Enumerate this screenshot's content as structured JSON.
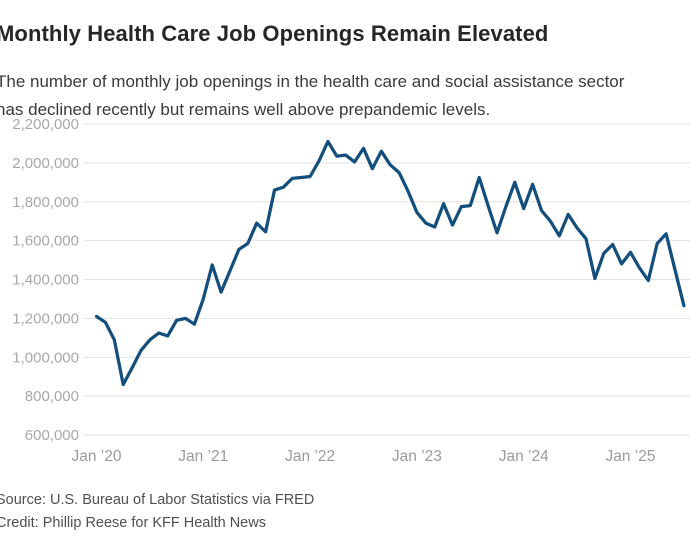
{
  "header": {
    "title": "Monthly Health Care Job Openings Remain Elevated",
    "subtitle": "The number of monthly job openings in the health care and social assistance sector has declined recently but remains well above prepandemic levels."
  },
  "footer": {
    "source": "Source: U.S. Bureau of Labor Statistics via FRED",
    "credit": "Credit: Phillip Reese for KFF Health News"
  },
  "colors": {
    "line": "#134e7c",
    "grid": "#e2e2e2",
    "y_tick_label": "#a8a8a8",
    "x_tick_label": "#9b9b9b",
    "title": "#262626",
    "subtitle": "#3a3a3a",
    "notes": "#4f4f4f"
  },
  "chart_data": {
    "type": "line",
    "title": "Monthly Health Care Job Openings Remain Elevated",
    "subtitle": "The number of monthly job openings in the health care and social assistance sector has declined recently but remains well above prepandemic levels.",
    "xlabel": "",
    "ylabel": "",
    "grid": "horizontal",
    "legend": "none",
    "ylim": [
      600000,
      2200000
    ],
    "y_ticks": [
      {
        "value": 2200000,
        "label": "2,200,000"
      },
      {
        "value": 2000000,
        "label": "2,000,000"
      },
      {
        "value": 1800000,
        "label": "1,800,000"
      },
      {
        "value": 1600000,
        "label": "1,600,000"
      },
      {
        "value": 1400000,
        "label": "1,400,000"
      },
      {
        "value": 1200000,
        "label": "1,200,000"
      },
      {
        "value": 1000000,
        "label": "1,000,000"
      },
      {
        "value": 800000,
        "label": "800,000"
      },
      {
        "value": 600000,
        "label": "600,000"
      }
    ],
    "x_ticks": [
      {
        "index": 0,
        "label": "Jan ’20"
      },
      {
        "index": 12,
        "label": "Jan ’21"
      },
      {
        "index": 24,
        "label": "Jan ’22"
      },
      {
        "index": 36,
        "label": "Jan ’23"
      },
      {
        "index": 48,
        "label": "Jan ’24"
      },
      {
        "index": 60,
        "label": "Jan ’25"
      }
    ],
    "x": [
      "Jan 2020",
      "Feb 2020",
      "Mar 2020",
      "Apr 2020",
      "May 2020",
      "Jun 2020",
      "Jul 2020",
      "Aug 2020",
      "Sep 2020",
      "Oct 2020",
      "Nov 2020",
      "Dec 2020",
      "Jan 2021",
      "Feb 2021",
      "Mar 2021",
      "Apr 2021",
      "May 2021",
      "Jun 2021",
      "Jul 2021",
      "Aug 2021",
      "Sep 2021",
      "Oct 2021",
      "Nov 2021",
      "Dec 2021",
      "Jan 2022",
      "Feb 2022",
      "Mar 2022",
      "Apr 2022",
      "May 2022",
      "Jun 2022",
      "Jul 2022",
      "Aug 2022",
      "Sep 2022",
      "Oct 2022",
      "Nov 2022",
      "Dec 2022",
      "Jan 2023",
      "Feb 2023",
      "Mar 2023",
      "Apr 2023",
      "May 2023",
      "Jun 2023",
      "Jul 2023",
      "Aug 2023",
      "Sep 2023",
      "Oct 2023",
      "Nov 2023",
      "Dec 2023",
      "Jan 2024",
      "Feb 2024",
      "Mar 2024",
      "Apr 2024",
      "May 2024",
      "Jun 2024",
      "Jul 2024",
      "Aug 2024",
      "Sep 2024",
      "Oct 2024",
      "Nov 2024",
      "Dec 2024",
      "Jan 2025",
      "Feb 2025",
      "Mar 2025",
      "Apr 2025",
      "May 2025",
      "Jun 2025",
      "Jul 2025"
    ],
    "series": [
      {
        "name": "Health care and social assistance job openings",
        "color": "#134e7c",
        "values": [
          1210000,
          1180000,
          1090000,
          860000,
          945000,
          1035000,
          1090000,
          1125000,
          1110000,
          1190000,
          1200000,
          1170000,
          1300000,
          1475000,
          1335000,
          1445000,
          1555000,
          1585000,
          1690000,
          1645000,
          1860000,
          1875000,
          1920000,
          1925000,
          1930000,
          2010000,
          2110000,
          2035000,
          2040000,
          2005000,
          2075000,
          1970000,
          2060000,
          1990000,
          1950000,
          1855000,
          1745000,
          1690000,
          1670000,
          1790000,
          1680000,
          1775000,
          1780000,
          1925000,
          1780000,
          1640000,
          1775000,
          1900000,
          1765000,
          1890000,
          1755000,
          1700000,
          1625000,
          1735000,
          1665000,
          1610000,
          1405000,
          1535000,
          1580000,
          1480000,
          1540000,
          1460000,
          1395000,
          1585000,
          1635000,
          1450000,
          1265000
        ]
      }
    ]
  }
}
